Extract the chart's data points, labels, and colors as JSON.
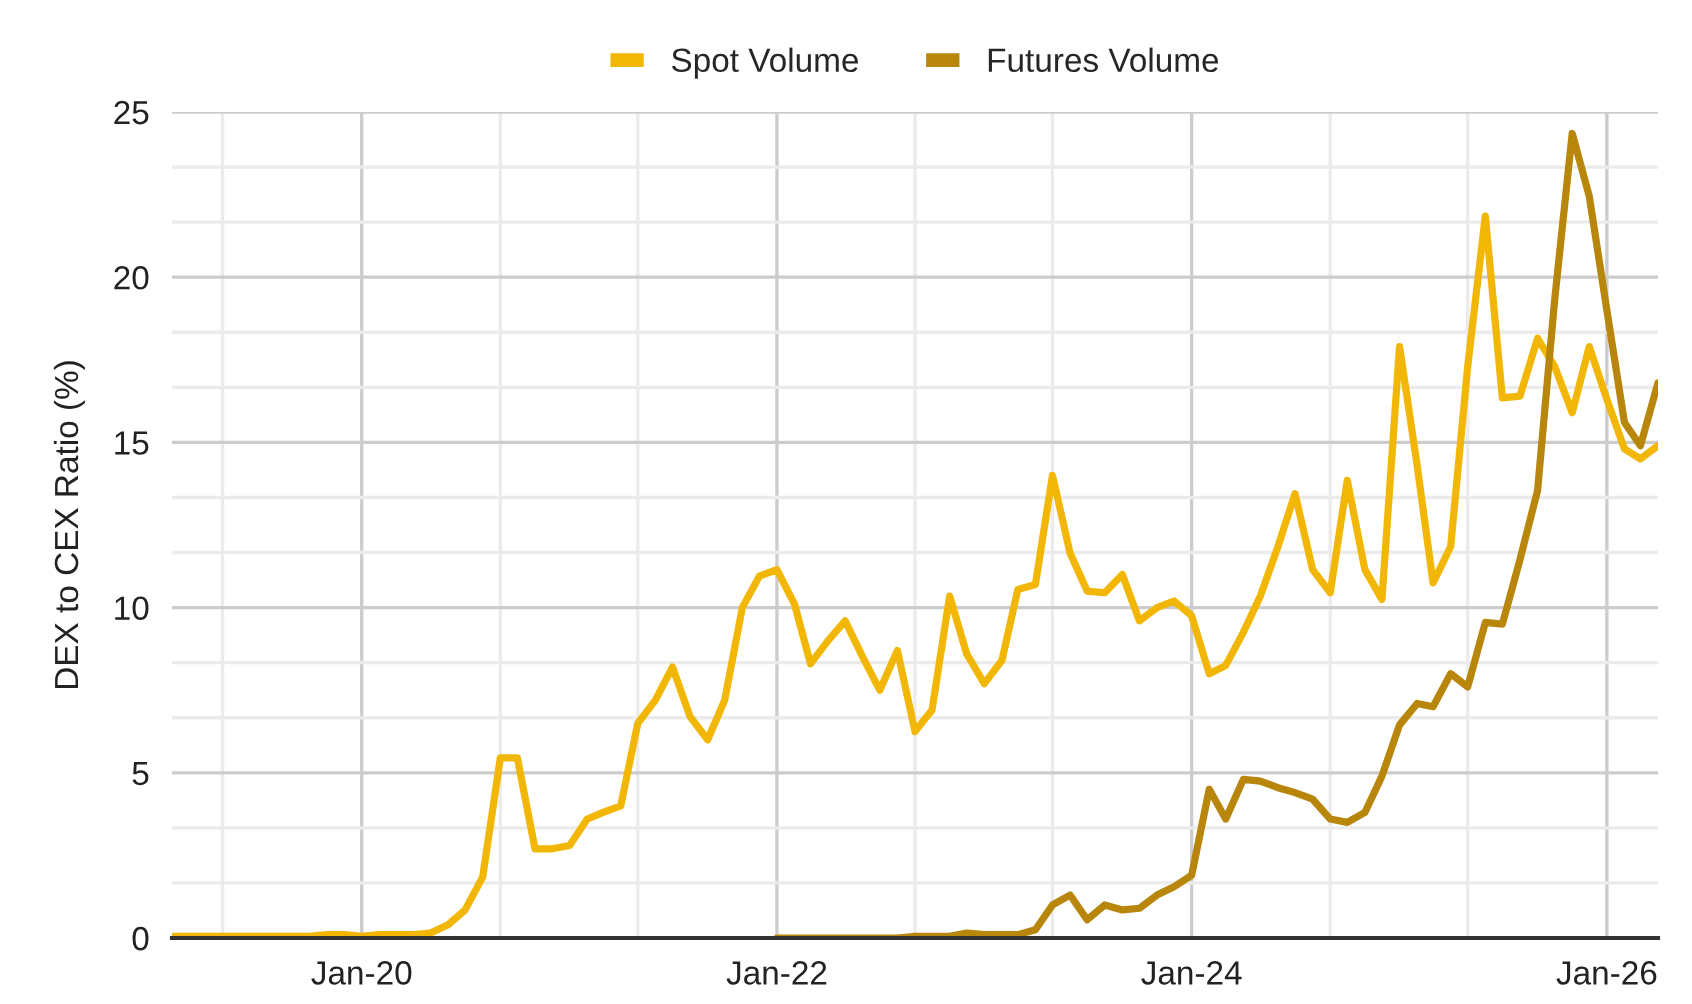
{
  "chart_data": {
    "type": "line",
    "ylabel": "DEX to CEX Ratio (%)",
    "x": [
      "2019-02",
      "2019-03",
      "2019-04",
      "2019-05",
      "2019-06",
      "2019-07",
      "2019-08",
      "2019-09",
      "2019-10",
      "2019-11",
      "2019-12",
      "2020-01",
      "2020-02",
      "2020-03",
      "2020-04",
      "2020-05",
      "2020-06",
      "2020-07",
      "2020-08",
      "2020-09",
      "2020-10",
      "2020-11",
      "2020-12",
      "2021-01",
      "2021-02",
      "2021-03",
      "2021-04",
      "2021-05",
      "2021-06",
      "2021-07",
      "2021-08",
      "2021-09",
      "2021-10",
      "2021-11",
      "2021-12",
      "2022-01",
      "2022-02",
      "2022-03",
      "2022-04",
      "2022-05",
      "2022-06",
      "2022-07",
      "2022-08",
      "2022-09",
      "2022-10",
      "2022-11",
      "2022-12",
      "2023-01",
      "2023-02",
      "2023-03",
      "2023-04",
      "2023-05",
      "2023-06",
      "2023-07",
      "2023-08",
      "2023-09",
      "2023-10",
      "2023-11",
      "2023-12",
      "2024-01",
      "2024-02",
      "2024-03",
      "2024-04",
      "2024-05",
      "2024-06",
      "2024-07",
      "2024-08",
      "2024-09",
      "2024-10",
      "2024-11",
      "2024-12",
      "2025-01",
      "2025-02",
      "2025-03",
      "2025-04",
      "2025-05",
      "2025-06",
      "2025-07",
      "2025-08",
      "2025-09",
      "2025-10",
      "2025-11",
      "2025-12",
      "2026-01",
      "2026-02",
      "2026-03",
      "2026-04"
    ],
    "series": [
      {
        "name": "Spot Volume",
        "color": "#f2b705",
        "values": [
          0.05,
          0.05,
          0.05,
          0.05,
          0.05,
          0.05,
          0.05,
          0.05,
          0.05,
          0.1,
          0.1,
          0.05,
          0.1,
          0.1,
          0.1,
          0.15,
          0.4,
          0.85,
          1.85,
          5.45,
          5.45,
          2.7,
          2.7,
          2.8,
          3.6,
          3.8,
          4.0,
          6.5,
          7.2,
          8.2,
          6.7,
          6.0,
          7.2,
          10.0,
          10.95,
          11.15,
          10.1,
          8.3,
          9.0,
          9.6,
          8.5,
          7.5,
          8.7,
          6.25,
          6.9,
          10.35,
          8.6,
          7.7,
          8.4,
          10.55,
          10.7,
          14.0,
          11.65,
          10.5,
          10.45,
          11.0,
          9.6,
          10.0,
          10.2,
          9.75,
          8.0,
          8.25,
          9.25,
          10.35,
          11.85,
          13.45,
          11.15,
          10.45,
          13.85,
          11.15,
          10.25,
          17.9,
          14.3,
          10.75,
          11.85,
          17.3,
          21.85,
          16.35,
          16.4,
          18.15,
          17.3,
          15.9,
          17.9,
          16.3,
          14.8,
          14.5,
          14.9
        ]
      },
      {
        "name": "Futures Volume",
        "color": "#b8860b",
        "values": [
          null,
          null,
          null,
          null,
          null,
          null,
          null,
          null,
          null,
          null,
          null,
          null,
          null,
          null,
          null,
          null,
          null,
          null,
          null,
          null,
          null,
          null,
          null,
          null,
          null,
          null,
          null,
          null,
          null,
          null,
          null,
          null,
          null,
          null,
          null,
          0.0,
          0.0,
          0.0,
          0.0,
          0.0,
          0.0,
          0.0,
          0.0,
          0.05,
          0.05,
          0.05,
          0.15,
          0.1,
          0.1,
          0.1,
          0.25,
          1.0,
          1.3,
          0.55,
          1.0,
          0.85,
          0.9,
          1.3,
          1.55,
          1.9,
          4.5,
          3.6,
          4.8,
          4.75,
          4.55,
          4.4,
          4.2,
          3.6,
          3.5,
          3.8,
          4.9,
          6.45,
          7.1,
          7.0,
          8.0,
          7.6,
          9.55,
          9.5,
          11.45,
          13.55,
          19.3,
          24.35,
          22.45,
          19.0,
          15.6,
          14.9,
          16.8
        ]
      }
    ],
    "xlim": [
      "2019-02-01",
      "2026-04-01"
    ],
    "xticks": [
      {
        "value": "2019-05-01",
        "label": null
      },
      {
        "value": "2020-01-01",
        "label": "Jan-20"
      },
      {
        "value": "2020-09-01",
        "label": null
      },
      {
        "value": "2021-05-01",
        "label": null
      },
      {
        "value": "2022-01-01",
        "label": "Jan-22"
      },
      {
        "value": "2022-09-01",
        "label": null
      },
      {
        "value": "2023-05-01",
        "label": null
      },
      {
        "value": "2024-01-01",
        "label": "Jan-24"
      },
      {
        "value": "2024-09-01",
        "label": null
      },
      {
        "value": "2025-05-01",
        "label": null
      },
      {
        "value": "2026-01-01",
        "label": "Jan-26"
      }
    ],
    "ylim": [
      0,
      25
    ],
    "yticks": [
      0,
      {
        "value": 1.667,
        "label": null
      },
      {
        "value": 3.333,
        "label": null
      },
      5,
      {
        "value": 6.667,
        "label": null
      },
      {
        "value": 8.333,
        "label": null
      },
      10,
      {
        "value": 11.667,
        "label": null
      },
      {
        "value": 13.333,
        "label": null
      },
      15,
      {
        "value": 16.667,
        "label": null
      },
      {
        "value": 18.333,
        "label": null
      },
      20,
      {
        "value": 21.667,
        "label": null
      },
      {
        "value": 23.333,
        "label": null
      },
      25
    ],
    "grid": true,
    "legend": "top",
    "marker": "none",
    "line_style": "solid"
  }
}
